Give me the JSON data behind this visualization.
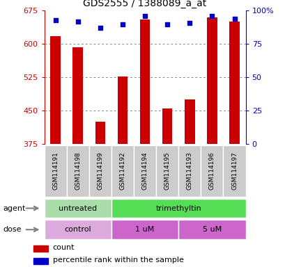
{
  "title": "GDS2555 / 1388089_a_at",
  "samples": [
    "GSM114191",
    "GSM114198",
    "GSM114199",
    "GSM114192",
    "GSM114194",
    "GSM114195",
    "GSM114193",
    "GSM114196",
    "GSM114197"
  ],
  "count_values": [
    618,
    593,
    425,
    527,
    655,
    456,
    475,
    660,
    650
  ],
  "percentile_values": [
    93,
    92,
    87,
    90,
    96,
    90,
    91,
    96,
    94
  ],
  "ymin": 375,
  "ymax": 675,
  "yticks": [
    375,
    450,
    525,
    600,
    675
  ],
  "percentile_yticks": [
    0,
    25,
    50,
    75,
    100
  ],
  "percentile_tick_labels": [
    "0",
    "25",
    "50",
    "75",
    "100%"
  ],
  "bar_color": "#cc0000",
  "dot_color": "#0000cc",
  "bar_width": 0.45,
  "agent_labels": [
    {
      "text": "untreated",
      "start": 0,
      "end": 3,
      "color": "#aaddaa"
    },
    {
      "text": "trimethyltin",
      "start": 3,
      "end": 9,
      "color": "#55dd55"
    }
  ],
  "dose_labels": [
    {
      "text": "control",
      "start": 0,
      "end": 3,
      "color": "#ddaadd"
    },
    {
      "text": "1 uM",
      "start": 3,
      "end": 6,
      "color": "#cc66cc"
    },
    {
      "text": "5 uM",
      "start": 6,
      "end": 9,
      "color": "#cc66cc"
    }
  ],
  "legend_count_color": "#cc0000",
  "legend_dot_color": "#0000cc",
  "left_axis_color": "#cc0000",
  "right_axis_color": "#0000cc",
  "grid_color": "#888888",
  "sample_label_color": "#cccccc",
  "left_label_agent": "agent",
  "left_label_dose": "dose",
  "legend_count_text": "count",
  "legend_percentile_text": "percentile rank within the sample"
}
